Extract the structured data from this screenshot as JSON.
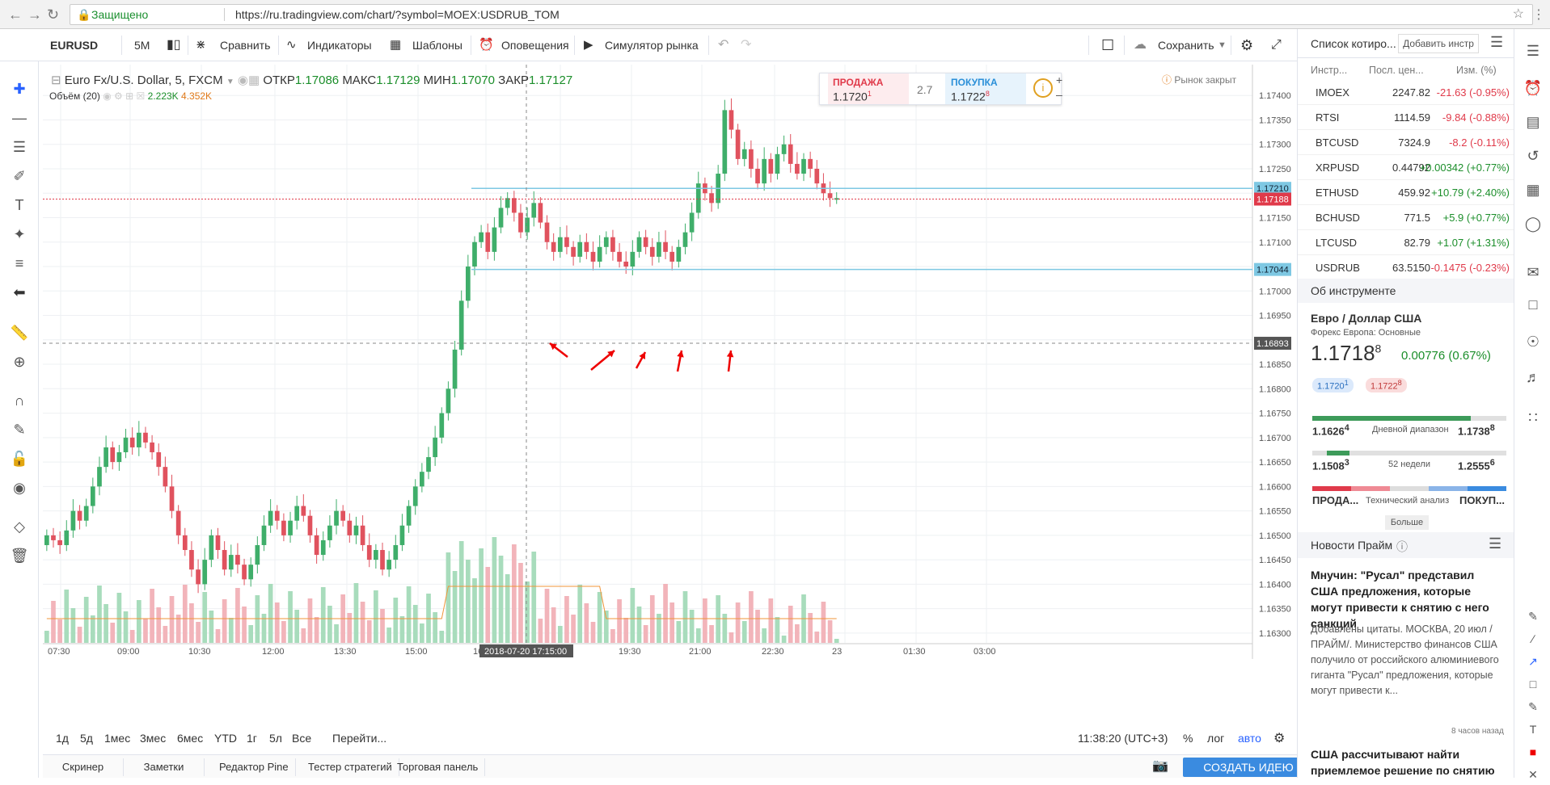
{
  "browser": {
    "secure_label": "Защищено",
    "url": "https://ru.tradingview.com/chart/?symbol=MOEX:USDRUB_TOM"
  },
  "toolbar": {
    "symbol": "EURUSD",
    "interval": "5M",
    "compare": "Сравнить",
    "indicators": "Индикаторы",
    "templates": "Шаблоны",
    "alerts": "Оповещения",
    "replay": "Симулятор рынка",
    "save": "Сохранить"
  },
  "legend": {
    "title": "Euro Fx/U.S. Dollar, 5, FXCM",
    "open_label": "ОТКР",
    "open": "1.17086",
    "high_label": "МАКС",
    "high": "1.17129",
    "low_label": "МИН",
    "low": "1.17070",
    "close_label": "ЗАКР",
    "close": "1.17127",
    "volume_label": "Объём (20)",
    "volume_value": "2.223K",
    "volume_ma": "4.352K",
    "market_status": "Рынок закрыт"
  },
  "trade": {
    "sell_label": "ПРОДАЖА",
    "sell_main": "1.1720",
    "sell_sup": "1",
    "spread": "2.7",
    "buy_label": "ПОКУПКА",
    "buy_main": "1.1722",
    "buy_sup": "8"
  },
  "chart_data": {
    "type": "candlestick",
    "y_ticks": [
      "1.17400",
      "1.17350",
      "1.17300",
      "1.17250",
      "1.17200",
      "1.17150",
      "1.17100",
      "1.17050",
      "1.17000",
      "1.16950",
      "1.16900",
      "1.16850",
      "1.16800",
      "1.16750",
      "1.16700",
      "1.16650",
      "1.16600",
      "1.16550",
      "1.16500",
      "1.16450",
      "1.16400",
      "1.16350",
      "1.16300"
    ],
    "ylim": [
      1.1628,
      1.1744
    ],
    "x_ticks": [
      "07:30",
      "09:00",
      "10:30",
      "12:00",
      "13:30",
      "15:00",
      "16",
      "18:00",
      "19:30",
      "21:00",
      "22:30",
      "23",
      "01:30",
      "03:00"
    ],
    "crosshair_time": "2018-07-20 17:15:00",
    "crosshair_price": "1.16893",
    "price_labels": [
      {
        "value": 1.1721,
        "text": "1.17210",
        "color": "#7ec8e3"
      },
      {
        "value": 1.17188,
        "text": "1.17188",
        "color": "#e03a4a"
      },
      {
        "value": 1.17044,
        "text": "1.17044",
        "color": "#7ec8e3"
      }
    ],
    "horizontal_lines": [
      1.1721,
      1.17044
    ],
    "candles_close": [
      1.165,
      1.1649,
      1.1648,
      1.1651,
      1.1655,
      1.1653,
      1.1656,
      1.166,
      1.1664,
      1.1668,
      1.1665,
      1.1667,
      1.167,
      1.1668,
      1.1671,
      1.1669,
      1.1667,
      1.1664,
      1.166,
      1.1655,
      1.165,
      1.1647,
      1.1643,
      1.164,
      1.1645,
      1.165,
      1.1647,
      1.1643,
      1.1646,
      1.1644,
      1.1641,
      1.1644,
      1.1648,
      1.1652,
      1.1655,
      1.1653,
      1.165,
      1.1653,
      1.1656,
      1.1654,
      1.165,
      1.1646,
      1.1649,
      1.1652,
      1.1655,
      1.1653,
      1.165,
      1.1652,
      1.1648,
      1.1645,
      1.1647,
      1.1643,
      1.1645,
      1.1648,
      1.1652,
      1.1656,
      1.166,
      1.1663,
      1.1666,
      1.167,
      1.1675,
      1.168,
      1.1688,
      1.1698,
      1.1705,
      1.171,
      1.1712,
      1.1708,
      1.1713,
      1.1717,
      1.1719,
      1.1716,
      1.1712,
      1.1715,
      1.1718,
      1.1714,
      1.171,
      1.1708,
      1.1711,
      1.1709,
      1.1707,
      1.171,
      1.1708,
      1.1706,
      1.1709,
      1.1711,
      1.1708,
      1.1706,
      1.1705,
      1.1708,
      1.1711,
      1.1709,
      1.1707,
      1.171,
      1.1708,
      1.1706,
      1.1709,
      1.1712,
      1.1716,
      1.1722,
      1.172,
      1.1718,
      1.1724,
      1.1737,
      1.1733,
      1.1727,
      1.1729,
      1.1725,
      1.1722,
      1.1727,
      1.1724,
      1.1728,
      1.173,
      1.1726,
      1.1724,
      1.1727,
      1.1725,
      1.1722,
      1.172,
      1.1719,
      1.1719
    ],
    "volume_label": "Объём"
  },
  "rangebar": {
    "ranges": [
      "1д",
      "5д",
      "1мес",
      "3мес",
      "6мес",
      "YTD",
      "1г",
      "5л",
      "Все"
    ],
    "goto": "Перейти...",
    "clock": "11:38:20 (UTC+3)",
    "percent": "%",
    "log": "лог",
    "auto": "авто"
  },
  "bottomtabs": {
    "tabs": [
      "Скринер",
      "Заметки",
      "Редактор Pine",
      "Тестер стратегий",
      "Торговая панель"
    ],
    "create": "СОЗДАТЬ ИДЕЮ"
  },
  "watchlist": {
    "title": "Список котиро...",
    "add": "Добавить инстр",
    "col_symbol": "Инстр...",
    "col_last": "Посл. цен...",
    "col_change": "Изм. (%)",
    "rows": [
      {
        "sym": "IMOEX",
        "last": "2247.82",
        "chg": "-21.63 (-0.95%)",
        "dir": "neg"
      },
      {
        "sym": "RTSI",
        "last": "1114.59",
        "chg": "-9.84 (-0.88%)",
        "dir": "neg"
      },
      {
        "sym": "BTCUSD",
        "last": "7324.9",
        "chg": "-8.2 (-0.11%)",
        "dir": "neg"
      },
      {
        "sym": "XRPUSD",
        "last": "0.44792",
        "chg": "+0.00342 (+0.77%)",
        "dir": "pos"
      },
      {
        "sym": "ETHUSD",
        "last": "459.92",
        "chg": "+10.79 (+2.40%)",
        "dir": "pos"
      },
      {
        "sym": "BCHUSD",
        "last": "771.5",
        "chg": "+5.9 (+0.77%)",
        "dir": "pos"
      },
      {
        "sym": "LTCUSD",
        "last": "82.79",
        "chg": "+1.07 (+1.31%)",
        "dir": "pos"
      },
      {
        "sym": "USDRUB",
        "last": "63.5150",
        "chg": "-0.1475 (-0.23%)",
        "dir": "neg"
      }
    ]
  },
  "instrument": {
    "section": "Об инструменте",
    "name": "Евро / Доллар США",
    "sub": "Форекс Европа: Основные",
    "price_main": "1.1718",
    "price_sup": "8",
    "change": "0.00776 (0.67%)",
    "bid": "1.1720",
    "bid_sup": "1",
    "ask": "1.1722",
    "ask_sup": "8",
    "day_low": "1.1626",
    "day_low_sup": "4",
    "day_label": "Дневной диапазон",
    "day_high": "1.1738",
    "day_high_sup": "8",
    "wk_low": "1.1508",
    "wk_low_sup": "3",
    "wk_label": "52 недели",
    "wk_high": "1.2555",
    "wk_high_sup": "6",
    "ta_sell": "ПРОДА...",
    "ta_label": "Технический анализ",
    "ta_buy": "ПОКУП...",
    "more": "Больше"
  },
  "news": {
    "section": "Новости Прайм",
    "title1": "Мнучин: \"Русал\" представил США предложения, которые могут привести к снятию с него санкций",
    "body1": "Добавлены цитаты. МОСКВА, 20 июл / ПРАЙМ/. Министерство финансов США получило от российского алюминиевого гиганта \"Русал\" предложения, которые могут привести к...",
    "time1": "8 часов назад",
    "title2": "США рассчитывают найти приемлемое решение по снятию"
  }
}
